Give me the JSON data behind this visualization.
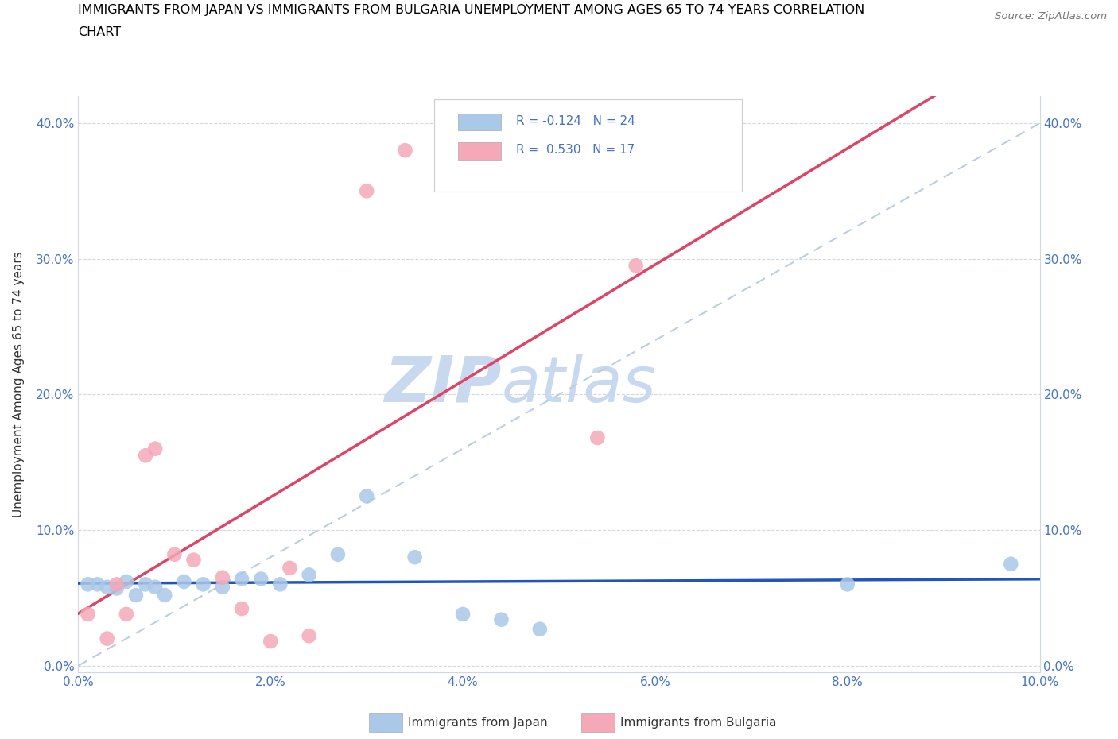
{
  "title_line1": "IMMIGRANTS FROM JAPAN VS IMMIGRANTS FROM BULGARIA UNEMPLOYMENT AMONG AGES 65 TO 74 YEARS CORRELATION",
  "title_line2": "CHART",
  "source": "Source: ZipAtlas.com",
  "ylabel": "Unemployment Among Ages 65 to 74 years",
  "legend_japan": "Immigrants from Japan",
  "legend_bulgaria": "Immigrants from Bulgaria",
  "R_japan": -0.124,
  "N_japan": 24,
  "R_bulgaria": 0.53,
  "N_bulgaria": 17,
  "japan_color": "#aac8e8",
  "bulgaria_color": "#f4a8b8",
  "japan_line_color": "#2255bb",
  "bulgaria_line_color": "#dd4466",
  "diagonal_color": "#bccede",
  "xlim": [
    0.0,
    0.1
  ],
  "ylim": [
    -0.005,
    0.42
  ],
  "xtick_vals": [
    0.0,
    0.02,
    0.04,
    0.06,
    0.08,
    0.1
  ],
  "ytick_vals": [
    0.0,
    0.1,
    0.2,
    0.3,
    0.4
  ],
  "japan_x": [
    0.001,
    0.002,
    0.003,
    0.004,
    0.005,
    0.006,
    0.007,
    0.008,
    0.009,
    0.011,
    0.013,
    0.015,
    0.017,
    0.019,
    0.021,
    0.024,
    0.027,
    0.03,
    0.035,
    0.04,
    0.044,
    0.048,
    0.08,
    0.097
  ],
  "japan_y": [
    0.06,
    0.06,
    0.058,
    0.057,
    0.062,
    0.052,
    0.06,
    0.058,
    0.052,
    0.062,
    0.06,
    0.058,
    0.064,
    0.064,
    0.06,
    0.067,
    0.082,
    0.125,
    0.08,
    0.038,
    0.034,
    0.027,
    0.06,
    0.075
  ],
  "bulgaria_x": [
    0.001,
    0.003,
    0.004,
    0.005,
    0.007,
    0.008,
    0.01,
    0.012,
    0.015,
    0.017,
    0.02,
    0.022,
    0.024,
    0.03,
    0.034,
    0.054,
    0.058
  ],
  "bulgaria_y": [
    0.038,
    0.02,
    0.06,
    0.038,
    0.155,
    0.16,
    0.082,
    0.078,
    0.065,
    0.042,
    0.018,
    0.072,
    0.022,
    0.35,
    0.38,
    0.168,
    0.295
  ],
  "watermark_zip": "ZIP",
  "watermark_atlas": "atlas",
  "watermark_color": "#c8d8ee",
  "background_color": "#ffffff",
  "grid_color": "#d0d8e8",
  "title_fontsize": 11.5,
  "axis_label_fontsize": 11,
  "tick_fontsize": 11,
  "tick_color": "#4472c4",
  "text_color": "#333333",
  "source_color": "#777777"
}
